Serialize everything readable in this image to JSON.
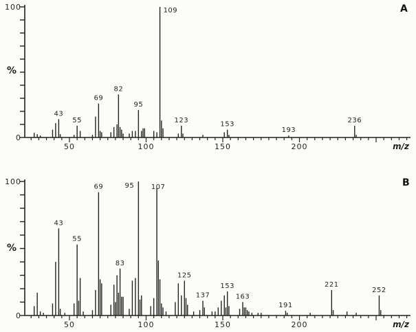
{
  "figure": {
    "background": "#fcfcfb",
    "ink_color": "#1f1f1f",
    "panel_count": 2
  },
  "chart_data": [
    {
      "type": "bar",
      "panel_label": "A",
      "title": "",
      "xlabel": "m/z",
      "ylabel": "%",
      "ylim": [
        0,
        100
      ],
      "xlim": [
        21,
        272
      ],
      "y_tick_step": 10,
      "y_tick_labels": [
        "100",
        "0"
      ],
      "x_tick_minor_step": 5,
      "x_ticks_labeled": [
        50,
        100,
        150,
        200
      ],
      "grid": "off",
      "legend": "none",
      "peaks": [
        [
          27,
          3.5
        ],
        [
          29,
          2.5
        ],
        [
          31,
          1.5
        ],
        [
          39,
          6
        ],
        [
          41,
          11
        ],
        [
          43,
          14
        ],
        [
          44,
          2.5
        ],
        [
          53,
          2
        ],
        [
          55,
          9
        ],
        [
          57,
          5
        ],
        [
          65,
          2
        ],
        [
          67,
          16
        ],
        [
          69,
          26
        ],
        [
          70,
          5
        ],
        [
          71,
          4
        ],
        [
          77,
          4
        ],
        [
          79,
          8
        ],
        [
          81,
          10
        ],
        [
          82,
          33
        ],
        [
          83,
          8
        ],
        [
          84,
          6
        ],
        [
          85,
          3
        ],
        [
          89,
          3
        ],
        [
          91,
          5
        ],
        [
          93,
          5
        ],
        [
          95,
          21
        ],
        [
          97,
          5
        ],
        [
          98,
          7
        ],
        [
          99,
          7
        ],
        [
          105,
          5
        ],
        [
          107,
          4
        ],
        [
          109,
          100
        ],
        [
          110,
          13
        ],
        [
          111,
          7
        ],
        [
          121,
          3
        ],
        [
          123,
          9
        ],
        [
          124,
          3
        ],
        [
          137,
          2
        ],
        [
          151,
          4
        ],
        [
          153,
          6
        ],
        [
          154,
          2
        ],
        [
          193,
          1.5
        ],
        [
          236,
          9
        ],
        [
          237,
          2
        ]
      ],
      "labeled_mz": [
        43,
        55,
        69,
        82,
        95,
        109,
        123,
        153,
        193,
        236
      ],
      "label_offsets": {
        "109": {
          "dx": 5,
          "dy": 13,
          "anchor": "start"
        }
      }
    },
    {
      "type": "bar",
      "panel_label": "B",
      "title": "",
      "xlabel": "m/z",
      "ylabel": "%",
      "ylim": [
        0,
        100
      ],
      "xlim": [
        21,
        272
      ],
      "y_tick_step": 10,
      "y_tick_labels": [
        "100",
        "0"
      ],
      "x_tick_minor_step": 5,
      "x_ticks_labeled": [
        50,
        100,
        150,
        200
      ],
      "grid": "off",
      "legend": "none",
      "peaks": [
        [
          27,
          7
        ],
        [
          29,
          17
        ],
        [
          31,
          3
        ],
        [
          33,
          2
        ],
        [
          39,
          9
        ],
        [
          41,
          40
        ],
        [
          43,
          65
        ],
        [
          44,
          5
        ],
        [
          47,
          2
        ],
        [
          53,
          9
        ],
        [
          55,
          53
        ],
        [
          56,
          11
        ],
        [
          57,
          28
        ],
        [
          59,
          3
        ],
        [
          65,
          4
        ],
        [
          67,
          19
        ],
        [
          69,
          92
        ],
        [
          70,
          27
        ],
        [
          71,
          24
        ],
        [
          77,
          8
        ],
        [
          79,
          23
        ],
        [
          80,
          10
        ],
        [
          81,
          30
        ],
        [
          82,
          17
        ],
        [
          83,
          35
        ],
        [
          84,
          14
        ],
        [
          85,
          14
        ],
        [
          89,
          5
        ],
        [
          91,
          26
        ],
        [
          93,
          28
        ],
        [
          95,
          100
        ],
        [
          96,
          12
        ],
        [
          97,
          15
        ],
        [
          103,
          7
        ],
        [
          105,
          13
        ],
        [
          107,
          95
        ],
        [
          108,
          41
        ],
        [
          109,
          27
        ],
        [
          110,
          9
        ],
        [
          111,
          6
        ],
        [
          113,
          3
        ],
        [
          119,
          10
        ],
        [
          121,
          24
        ],
        [
          123,
          15
        ],
        [
          125,
          26
        ],
        [
          126,
          13
        ],
        [
          127,
          8
        ],
        [
          131,
          3
        ],
        [
          135,
          4
        ],
        [
          137,
          11
        ],
        [
          138,
          6
        ],
        [
          143,
          3
        ],
        [
          145,
          3
        ],
        [
          147,
          6
        ],
        [
          149,
          11
        ],
        [
          151,
          15
        ],
        [
          152,
          6
        ],
        [
          153,
          18
        ],
        [
          154,
          7
        ],
        [
          161,
          5
        ],
        [
          163,
          10
        ],
        [
          164,
          6
        ],
        [
          165,
          6
        ],
        [
          166,
          4
        ],
        [
          167,
          3
        ],
        [
          169,
          2
        ],
        [
          173,
          2
        ],
        [
          175,
          2
        ],
        [
          191,
          3.5
        ],
        [
          192,
          2
        ],
        [
          207,
          2
        ],
        [
          221,
          19
        ],
        [
          222,
          4
        ],
        [
          231,
          3
        ],
        [
          237,
          2
        ],
        [
          252,
          15
        ],
        [
          253,
          4
        ]
      ],
      "labeled_mz": [
        43,
        55,
        69,
        83,
        95,
        107,
        125,
        137,
        153,
        163,
        191,
        221,
        252
      ],
      "label_offsets": {
        "95": {
          "dx": -13,
          "dy": 14,
          "anchor": "middle"
        },
        "107": {
          "dx": 2,
          "dy": 6,
          "anchor": "middle"
        },
        "69": {
          "dx": 0,
          "dy": 0,
          "anchor": "middle"
        }
      }
    }
  ]
}
